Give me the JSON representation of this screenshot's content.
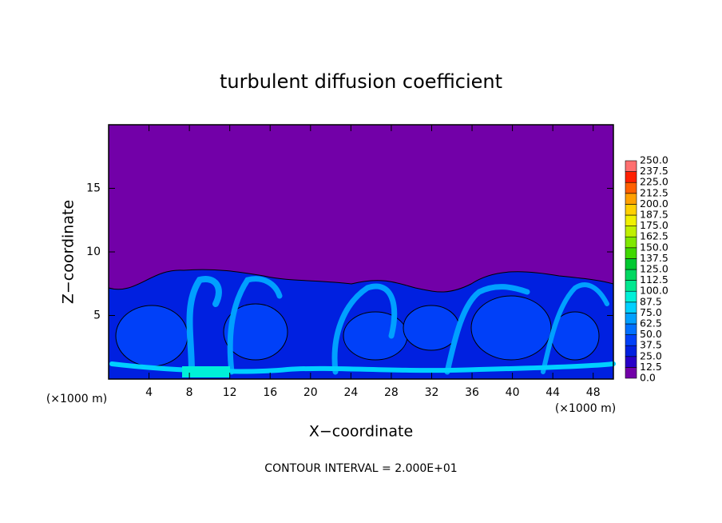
{
  "chart_data": {
    "type": "contour",
    "title": "turbulent diffusion coefficient",
    "xlabel": "X−coordinate",
    "ylabel": "Z−coordinate",
    "x_unit": "(×1000 m)",
    "x_unit_right": "(×1000 m)",
    "footer": "CONTOUR INTERVAL = 2.000E+01",
    "xlim": [
      0,
      50
    ],
    "ylim": [
      0,
      20
    ],
    "xticks": [
      4,
      8,
      12,
      16,
      20,
      24,
      28,
      32,
      36,
      40,
      44,
      48
    ],
    "yticks": [
      5,
      10,
      15
    ],
    "background_color": "#7200a8",
    "colorbar": {
      "levels": [
        {
          "value": 0,
          "label": "0.0"
        },
        {
          "value": 12.5,
          "label": "12.5"
        },
        {
          "value": 25,
          "label": "25.0"
        },
        {
          "value": 37.5,
          "label": "37.5"
        },
        {
          "value": 50,
          "label": "50.0"
        },
        {
          "value": 62.5,
          "label": "62.5"
        },
        {
          "value": 75,
          "label": "75.0"
        },
        {
          "value": 87.5,
          "label": "87.5"
        },
        {
          "value": 100,
          "label": "100.0"
        },
        {
          "value": 112.5,
          "label": "112.5"
        },
        {
          "value": 125,
          "label": "125.0"
        },
        {
          "value": 137.5,
          "label": "137.5"
        },
        {
          "value": 150,
          "label": "150.0"
        },
        {
          "value": 162.5,
          "label": "162.5"
        },
        {
          "value": 175,
          "label": "175.0"
        },
        {
          "value": 187.5,
          "label": "187.5"
        },
        {
          "value": 200,
          "label": "200.0"
        },
        {
          "value": 212.5,
          "label": "212.5"
        },
        {
          "value": 225,
          "label": "225.0"
        },
        {
          "value": 237.5,
          "label": "237.5"
        },
        {
          "value": 250,
          "label": "250.0"
        }
      ],
      "colors": [
        "#7200a8",
        "#2800c8",
        "#0020e0",
        "#0040f8",
        "#0070ff",
        "#00a0ff",
        "#00d0ff",
        "#00f0d8",
        "#00e890",
        "#00d860",
        "#00c830",
        "#40d800",
        "#80e800",
        "#c0f000",
        "#f0f000",
        "#ffd000",
        "#ffa000",
        "#ff6000",
        "#ff2000",
        "#ff7070"
      ]
    }
  }
}
